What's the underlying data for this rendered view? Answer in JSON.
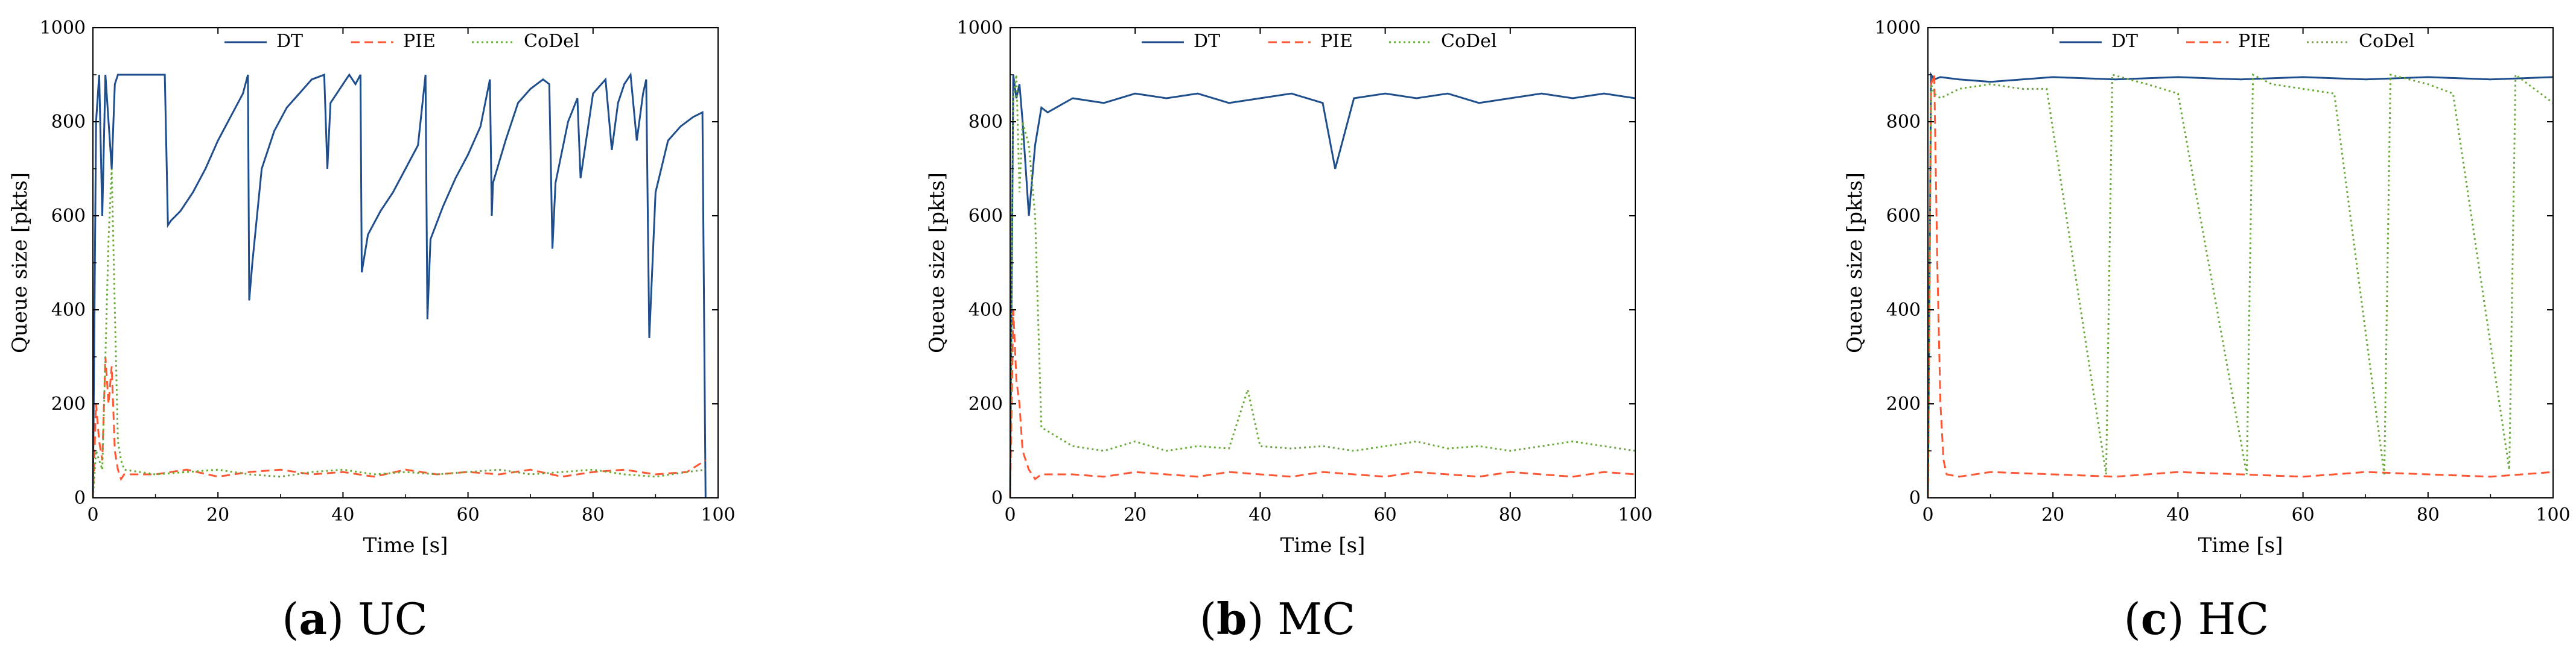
{
  "chart_data": [
    {
      "type": "line",
      "panel": "a",
      "caption": "UC",
      "xlabel": "Time [s]",
      "ylabel": "Queue size [pkts]",
      "xlim": [
        0,
        100
      ],
      "ylim": [
        0,
        1000
      ],
      "xticks": [
        0,
        20,
        40,
        60,
        80,
        100
      ],
      "yticks": [
        0,
        200,
        400,
        600,
        800,
        1000
      ],
      "legend_position": "top-center",
      "series": [
        {
          "name": "DT",
          "color": "#1f4e8c",
          "style": "solid",
          "x": [
            0,
            0.5,
            1,
            1.5,
            2,
            2.5,
            3,
            3.5,
            4,
            4.5,
            5,
            6,
            8,
            10,
            11.5,
            12,
            12.5,
            14,
            16,
            18,
            20,
            22,
            24,
            24.8,
            25,
            25.5,
            27,
            29,
            31,
            33,
            35,
            37,
            37.5,
            38,
            40,
            41,
            42,
            42.8,
            43,
            44,
            46,
            48,
            50,
            52,
            53.2,
            53.5,
            54,
            56,
            58,
            60,
            62,
            63.5,
            63.8,
            64,
            66,
            68,
            70,
            72,
            73,
            73.5,
            74,
            76,
            77.5,
            78,
            80,
            82,
            83,
            84,
            85,
            86,
            87,
            88,
            88.5,
            89,
            90,
            92,
            94,
            96,
            97.5,
            98
          ],
          "y": [
            0,
            800,
            900,
            600,
            900,
            800,
            700,
            880,
            900,
            900,
            900,
            900,
            900,
            900,
            900,
            580,
            590,
            610,
            650,
            700,
            760,
            810,
            860,
            900,
            420,
            500,
            700,
            780,
            830,
            860,
            890,
            900,
            700,
            840,
            880,
            900,
            880,
            900,
            480,
            560,
            610,
            650,
            700,
            750,
            900,
            380,
            550,
            620,
            680,
            730,
            790,
            890,
            600,
            670,
            760,
            840,
            870,
            890,
            880,
            530,
            670,
            800,
            850,
            680,
            860,
            890,
            740,
            840,
            880,
            900,
            760,
            860,
            890,
            340,
            650,
            760,
            790,
            810,
            820,
            0
          ]
        },
        {
          "name": "PIE",
          "color": "#ff5733",
          "style": "dashed",
          "x": [
            0,
            0.5,
            1,
            1.5,
            2,
            2.5,
            3,
            3.5,
            4,
            4.5,
            5,
            10,
            15,
            20,
            25,
            30,
            35,
            40,
            45,
            50,
            55,
            60,
            65,
            70,
            75,
            80,
            85,
            90,
            95,
            98
          ],
          "y": [
            0,
            200,
            120,
            80,
            300,
            200,
            280,
            100,
            60,
            40,
            50,
            50,
            60,
            45,
            55,
            60,
            50,
            55,
            45,
            60,
            50,
            55,
            50,
            60,
            45,
            55,
            60,
            50,
            55,
            80
          ]
        },
        {
          "name": "CoDel",
          "color": "#6aaa3a",
          "style": "dotted",
          "x": [
            0,
            0.5,
            1,
            1.5,
            2,
            2.5,
            3,
            3.5,
            4,
            4.5,
            5,
            10,
            15,
            20,
            25,
            30,
            35,
            40,
            45,
            50,
            55,
            60,
            65,
            70,
            75,
            80,
            85,
            90,
            95,
            98
          ],
          "y": [
            0,
            100,
            80,
            60,
            300,
            550,
            700,
            400,
            120,
            80,
            60,
            50,
            55,
            60,
            50,
            45,
            55,
            60,
            50,
            55,
            50,
            55,
            60,
            50,
            55,
            60,
            50,
            45,
            55,
            60
          ]
        }
      ]
    },
    {
      "type": "line",
      "panel": "b",
      "caption": "MC",
      "xlabel": "Time [s]",
      "ylabel": "Queue size [pkts]",
      "xlim": [
        0,
        100
      ],
      "ylim": [
        0,
        1000
      ],
      "xticks": [
        0,
        20,
        40,
        60,
        80,
        100
      ],
      "yticks": [
        0,
        200,
        400,
        600,
        800,
        1000
      ],
      "legend_position": "top-center",
      "series": [
        {
          "name": "DT",
          "color": "#1f4e8c",
          "style": "solid",
          "x": [
            0,
            0.5,
            1,
            1.5,
            2,
            3,
            4,
            5,
            6,
            10,
            15,
            20,
            25,
            30,
            35,
            40,
            45,
            50,
            52,
            55,
            60,
            65,
            70,
            75,
            80,
            85,
            90,
            95,
            100
          ],
          "y": [
            0,
            900,
            850,
            880,
            800,
            600,
            750,
            830,
            820,
            850,
            840,
            860,
            850,
            860,
            840,
            850,
            860,
            840,
            700,
            850,
            860,
            850,
            860,
            840,
            850,
            860,
            850,
            860,
            850
          ]
        },
        {
          "name": "PIE",
          "color": "#ff5733",
          "style": "dashed",
          "x": [
            0,
            0.5,
            1,
            1.5,
            2,
            3,
            4,
            5,
            10,
            15,
            20,
            25,
            30,
            35,
            40,
            45,
            50,
            55,
            60,
            65,
            70,
            75,
            80,
            85,
            90,
            95,
            100
          ],
          "y": [
            0,
            400,
            250,
            200,
            100,
            60,
            40,
            50,
            50,
            45,
            55,
            50,
            45,
            55,
            50,
            45,
            55,
            50,
            45,
            55,
            50,
            45,
            55,
            50,
            45,
            55,
            50
          ]
        },
        {
          "name": "CoDel",
          "color": "#6aaa3a",
          "style": "dotted",
          "x": [
            0,
            0.5,
            1,
            1.5,
            2,
            3,
            4,
            5,
            10,
            15,
            20,
            25,
            30,
            35,
            38,
            40,
            45,
            50,
            55,
            60,
            65,
            70,
            75,
            80,
            85,
            90,
            95,
            100
          ],
          "y": [
            0,
            850,
            900,
            650,
            800,
            750,
            600,
            150,
            110,
            100,
            120,
            100,
            110,
            105,
            230,
            110,
            105,
            110,
            100,
            110,
            120,
            105,
            110,
            100,
            110,
            120,
            110,
            100
          ]
        }
      ]
    },
    {
      "type": "line",
      "panel": "c",
      "caption": "HC",
      "xlabel": "Time [s]",
      "ylabel": "Queue size [pkts]",
      "xlim": [
        0,
        100
      ],
      "ylim": [
        0,
        1000
      ],
      "xticks": [
        0,
        20,
        40,
        60,
        80,
        100
      ],
      "yticks": [
        0,
        200,
        400,
        600,
        800,
        1000
      ],
      "legend_position": "top-center",
      "series": [
        {
          "name": "DT",
          "color": "#1f4e8c",
          "style": "solid",
          "x": [
            0,
            0.5,
            1,
            2,
            5,
            10,
            20,
            30,
            40,
            50,
            60,
            70,
            80,
            90,
            100
          ],
          "y": [
            0,
            900,
            890,
            895,
            890,
            885,
            895,
            890,
            895,
            890,
            895,
            890,
            895,
            890,
            895
          ]
        },
        {
          "name": "PIE",
          "color": "#ff5733",
          "style": "dashed",
          "x": [
            0,
            0.5,
            1,
            1.5,
            2,
            2.5,
            3,
            5,
            10,
            20,
            30,
            40,
            50,
            60,
            70,
            80,
            90,
            100
          ],
          "y": [
            0,
            880,
            900,
            500,
            200,
            80,
            50,
            45,
            55,
            50,
            45,
            55,
            50,
            45,
            55,
            50,
            45,
            55
          ]
        },
        {
          "name": "CoDel",
          "color": "#6aaa3a",
          "style": "dotted",
          "x": [
            0,
            0.5,
            1,
            2,
            5,
            10,
            15,
            19,
            28.5,
            29.5,
            35,
            40,
            51,
            52,
            55,
            60,
            65,
            73,
            74,
            80,
            84,
            93,
            94,
            100
          ],
          "y": [
            0,
            880,
            860,
            850,
            870,
            880,
            870,
            870,
            50,
            900,
            880,
            860,
            50,
            900,
            880,
            870,
            860,
            50,
            900,
            880,
            860,
            60,
            900,
            840
          ]
        }
      ]
    }
  ]
}
